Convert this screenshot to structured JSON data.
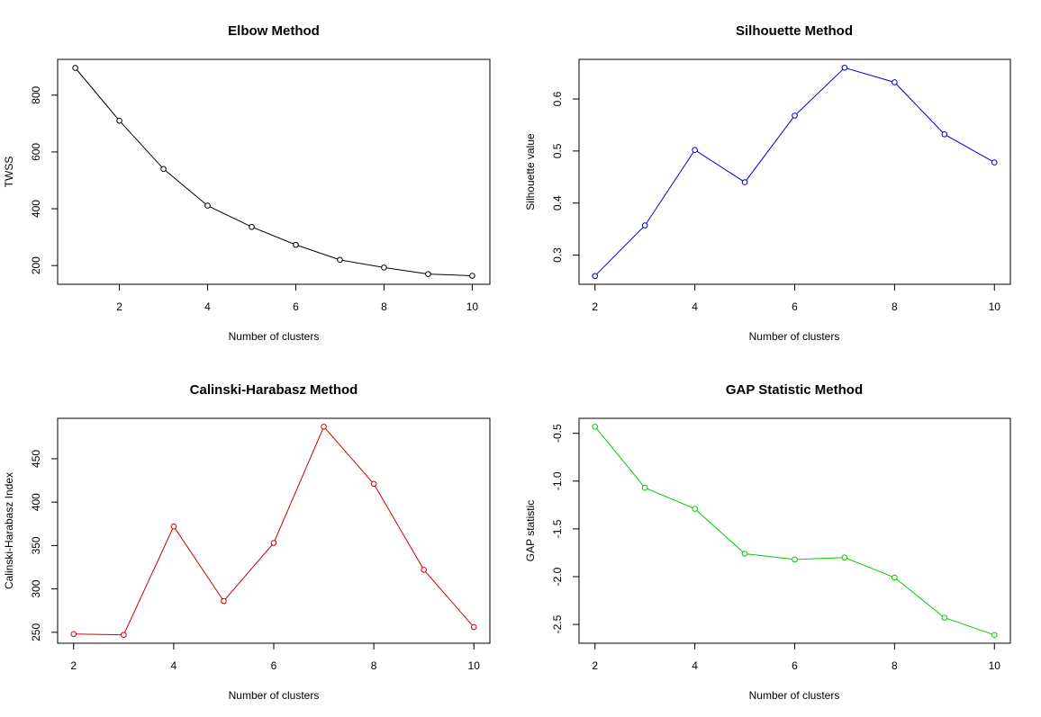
{
  "chart_data": [
    {
      "type": "line",
      "title": "Elbow Method",
      "xlabel": "Number of clusters",
      "ylabel": "TWSS",
      "color": "#000000",
      "x": [
        1,
        2,
        3,
        4,
        5,
        6,
        7,
        8,
        9,
        10
      ],
      "values": [
        896,
        710,
        540,
        411,
        336,
        273,
        220,
        193,
        170,
        164
      ],
      "xlim": [
        0.6,
        10.4
      ],
      "ylim": [
        134,
        926
      ],
      "xticks": [
        2,
        4,
        6,
        8,
        10
      ],
      "yticks": [
        200,
        400,
        600,
        800
      ]
    },
    {
      "type": "line",
      "title": "Silhouette Method",
      "xlabel": "Number of clusters",
      "ylabel": "Silhouette value",
      "color": "#0000cc",
      "x": [
        2,
        3,
        4,
        5,
        6,
        7,
        8,
        9,
        10
      ],
      "values": [
        0.26,
        0.357,
        0.502,
        0.44,
        0.568,
        0.66,
        0.632,
        0.532,
        0.478
      ],
      "xlim": [
        1.68,
        10.32
      ],
      "ylim": [
        0.244,
        0.676
      ],
      "xticks": [
        2,
        4,
        6,
        8,
        10
      ],
      "yticks": [
        0.3,
        0.4,
        0.5,
        0.6
      ]
    },
    {
      "type": "line",
      "title": "Calinski-Harabasz Method",
      "xlabel": "Number of clusters",
      "ylabel": "Calinski-Harabasz Index",
      "color": "#cc0000",
      "x": [
        2,
        3,
        4,
        5,
        6,
        7,
        8,
        9,
        10
      ],
      "values": [
        248,
        247,
        372,
        286,
        353,
        487,
        421,
        322,
        256
      ],
      "xlim": [
        1.68,
        10.32
      ],
      "ylim": [
        237.4,
        496.6
      ],
      "xticks": [
        2,
        4,
        6,
        8,
        10
      ],
      "yticks": [
        250,
        300,
        350,
        400,
        450
      ]
    },
    {
      "type": "line",
      "title": "GAP Statistic Method",
      "xlabel": "Number of clusters",
      "ylabel": "GAP statistic",
      "color": "#00cc00",
      "x": [
        2,
        3,
        4,
        5,
        6,
        7,
        8,
        9,
        10
      ],
      "values": [
        -0.43,
        -1.07,
        -1.29,
        -1.76,
        -1.82,
        -1.8,
        -2.01,
        -2.43,
        -2.61
      ],
      "xlim": [
        1.68,
        10.32
      ],
      "ylim": [
        -2.697,
        -0.343
      ],
      "xticks": [
        2,
        4,
        6,
        8,
        10
      ],
      "yticks": [
        -2.5,
        -2.0,
        -1.5,
        -1.0,
        -0.5
      ],
      "ytick_labels": [
        "-2.5",
        "-2.0",
        "-1.5",
        "-1.0",
        "-0.5"
      ]
    }
  ]
}
